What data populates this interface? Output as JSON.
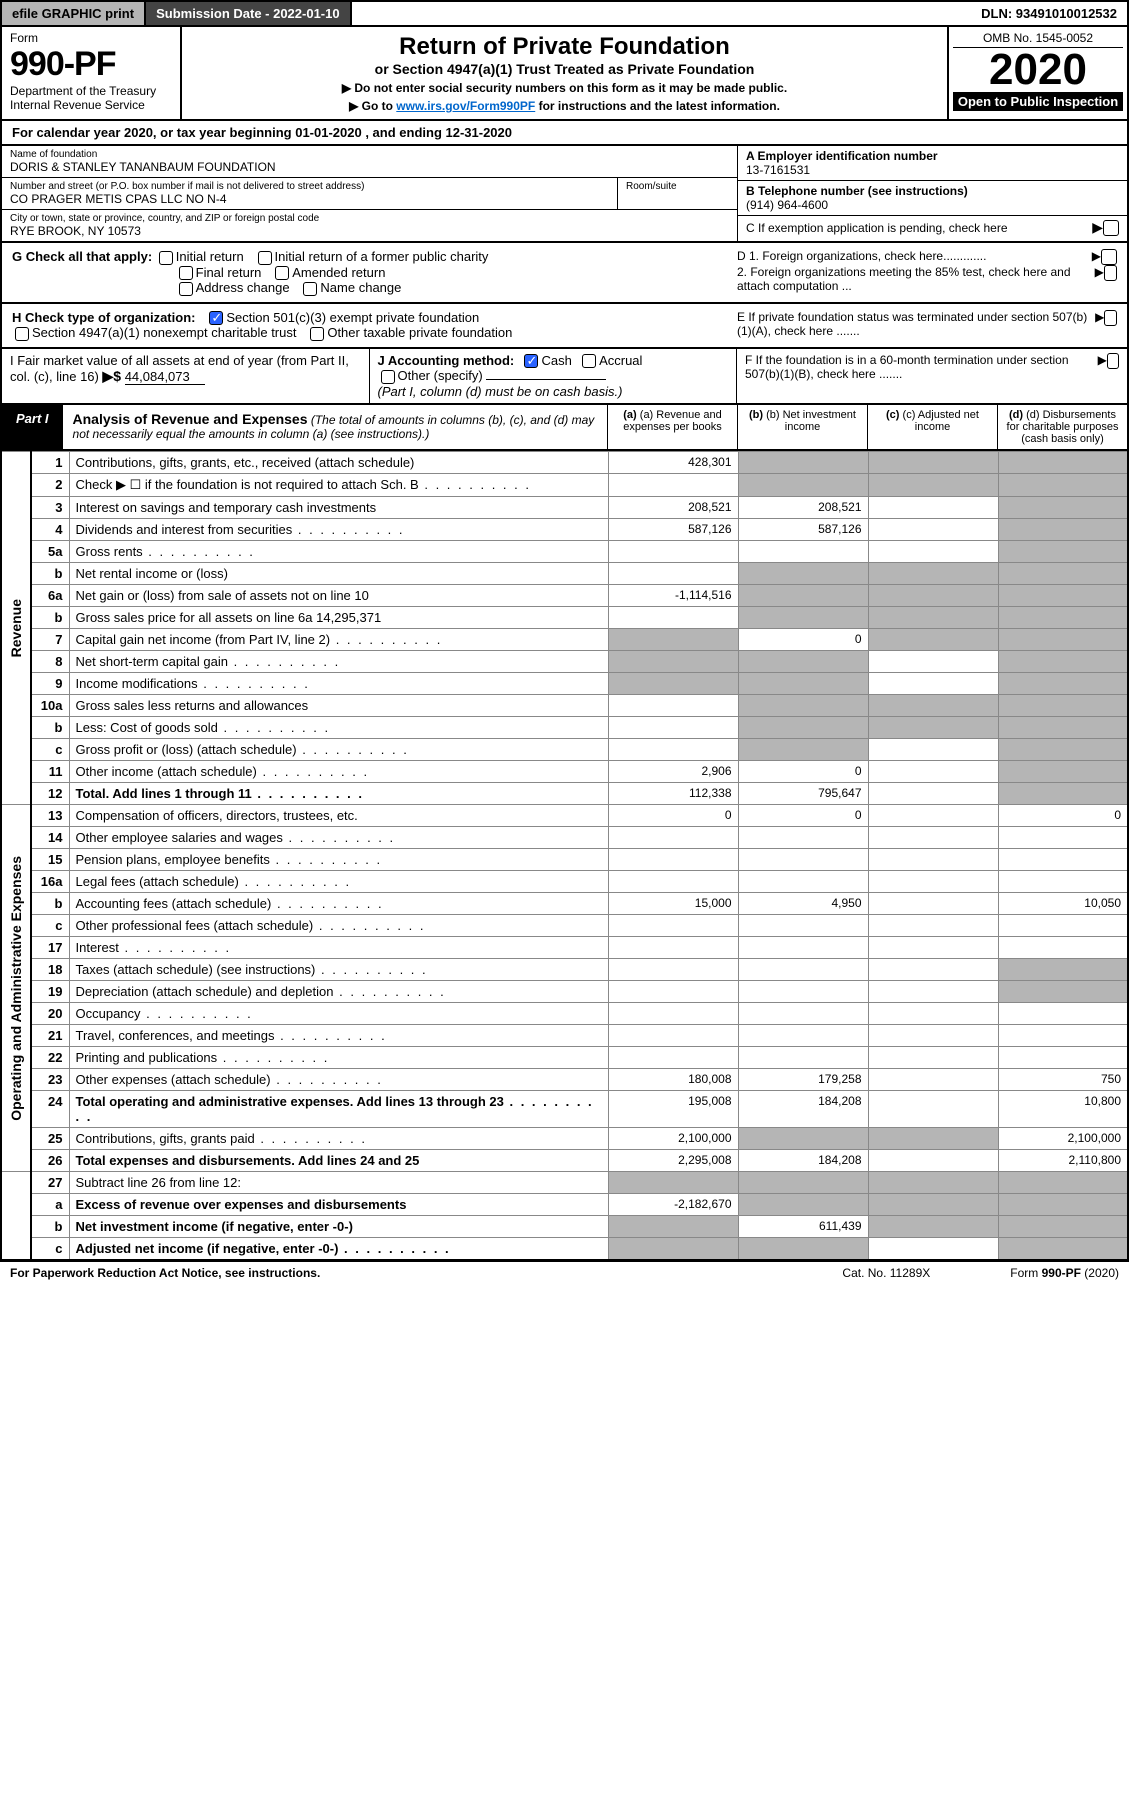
{
  "colors": {
    "grey": "#b5b5b5",
    "dark": "#444444",
    "link": "#0066cc",
    "check": "#2962ff"
  },
  "topbar": {
    "efile": "efile GRAPHIC print",
    "submission": "Submission Date - 2022-01-10",
    "dln": "DLN: 93491010012532"
  },
  "header": {
    "form_label": "Form",
    "form_no": "990-PF",
    "dept": "Department of the Treasury",
    "irs": "Internal Revenue Service",
    "title": "Return of Private Foundation",
    "subtitle": "or Section 4947(a)(1) Trust Treated as Private Foundation",
    "note1": "▶ Do not enter social security numbers on this form as it may be made public.",
    "note2_pre": "▶ Go to ",
    "note2_link": "www.irs.gov/Form990PF",
    "note2_post": " for instructions and the latest information.",
    "omb": "OMB No. 1545-0052",
    "year": "2020",
    "open": "Open to Public Inspection"
  },
  "calyear": "For calendar year 2020, or tax year beginning 01-01-2020             , and ending 12-31-2020",
  "info": {
    "name_lbl": "Name of foundation",
    "name": "DORIS & STANLEY TANANBAUM FOUNDATION",
    "addr_lbl": "Number and street (or P.O. box number if mail is not delivered to street address)",
    "addr": "CO PRAGER METIS CPAS LLC NO N-4",
    "room_lbl": "Room/suite",
    "city_lbl": "City or town, state or province, country, and ZIP or foreign postal code",
    "city": "RYE BROOK, NY  10573",
    "a_lbl": "A Employer identification number",
    "a_val": "13-7161531",
    "b_lbl": "B Telephone number (see instructions)",
    "b_val": "(914) 964-4600",
    "c_lbl": "C If exemption application is pending, check here",
    "d1": "D 1. Foreign organizations, check here.............",
    "d2": "2. Foreign organizations meeting the 85% test, check here and attach computation ...",
    "e": "E  If private foundation status was terminated under section 507(b)(1)(A), check here .......",
    "f": "F  If the foundation is in a 60-month termination under section 507(b)(1)(B), check here ......."
  },
  "G": {
    "label": "G Check all that apply:",
    "opts": [
      "Initial return",
      "Initial return of a former public charity",
      "Final return",
      "Amended return",
      "Address change",
      "Name change"
    ]
  },
  "H": {
    "label": "H Check type of organization:",
    "opt1": "Section 501(c)(3) exempt private foundation",
    "opt2": "Section 4947(a)(1) nonexempt charitable trust",
    "opt3": "Other taxable private foundation"
  },
  "I": {
    "label": "I Fair market value of all assets at end of year (from Part II, col. (c), line 16)",
    "arrow": "▶$",
    "value": "44,084,073"
  },
  "J": {
    "label": "J Accounting method:",
    "cash": "Cash",
    "accrual": "Accrual",
    "other": "Other (specify)",
    "note": "(Part I, column (d) must be on cash basis.)"
  },
  "part1": {
    "tag": "Part I",
    "title": "Analysis of Revenue and Expenses",
    "note": "(The total of amounts in columns (b), (c), and (d) may not necessarily equal the amounts in column (a) (see instructions).)",
    "col_a": "(a) Revenue and expenses per books",
    "col_b": "(b) Net investment income",
    "col_c": "(c) Adjusted net income",
    "col_d": "(d) Disbursements for charitable purposes (cash basis only)"
  },
  "sides": {
    "rev": "Revenue",
    "oae": "Operating and Administrative Expenses"
  },
  "lines": [
    {
      "n": "1",
      "d": "Contributions, gifts, grants, etc., received (attach schedule)",
      "a": "428,301",
      "bgrey": true,
      "cgrey": true,
      "dgrey": true
    },
    {
      "n": "2",
      "d": "Check ▶ ☐ if the foundation is not required to attach Sch. B",
      "dots": true,
      "bgrey": true,
      "cgrey": true,
      "dgrey": true
    },
    {
      "n": "3",
      "d": "Interest on savings and temporary cash investments",
      "a": "208,521",
      "b": "208,521",
      "dgrey": true
    },
    {
      "n": "4",
      "d": "Dividends and interest from securities",
      "dots": true,
      "a": "587,126",
      "b": "587,126",
      "dgrey": true
    },
    {
      "n": "5a",
      "d": "Gross rents",
      "dots": true,
      "dgrey": true
    },
    {
      "n": "b",
      "d": "Net rental income or (loss)",
      "bgrey": true,
      "cgrey": true,
      "dgrey": true
    },
    {
      "n": "6a",
      "d": "Net gain or (loss) from sale of assets not on line 10",
      "a": "-1,114,516",
      "bgrey": true,
      "cgrey": true,
      "dgrey": true
    },
    {
      "n": "b",
      "d": "Gross sales price for all assets on line 6a        14,295,371",
      "bgrey": true,
      "cgrey": true,
      "dgrey": true
    },
    {
      "n": "7",
      "d": "Capital gain net income (from Part IV, line 2)",
      "dots": true,
      "agrey": true,
      "b": "0",
      "cgrey": true,
      "dgrey": true
    },
    {
      "n": "8",
      "d": "Net short-term capital gain",
      "dots": true,
      "agrey": true,
      "bgrey": true,
      "dgrey": true
    },
    {
      "n": "9",
      "d": "Income modifications",
      "dots": true,
      "agrey": true,
      "bgrey": true,
      "dgrey": true
    },
    {
      "n": "10a",
      "d": "Gross sales less returns and allowances",
      "bgrey": true,
      "cgrey": true,
      "dgrey": true
    },
    {
      "n": "b",
      "d": "Less: Cost of goods sold",
      "dots": true,
      "bgrey": true,
      "cgrey": true,
      "dgrey": true
    },
    {
      "n": "c",
      "d": "Gross profit or (loss) (attach schedule)",
      "dots": true,
      "bgrey": true,
      "dgrey": true
    },
    {
      "n": "11",
      "d": "Other income (attach schedule)",
      "dots": true,
      "a": "2,906",
      "b": "0",
      "dgrey": true
    },
    {
      "n": "12",
      "d": "Total. Add lines 1 through 11",
      "dots": true,
      "bold": true,
      "a": "112,338",
      "b": "795,647",
      "dgrey": true
    }
  ],
  "lines2": [
    {
      "n": "13",
      "d": "Compensation of officers, directors, trustees, etc.",
      "a": "0",
      "b": "0",
      "dd": "0"
    },
    {
      "n": "14",
      "d": "Other employee salaries and wages",
      "dots": true
    },
    {
      "n": "15",
      "d": "Pension plans, employee benefits",
      "dots": true
    },
    {
      "n": "16a",
      "d": "Legal fees (attach schedule)",
      "dots": true
    },
    {
      "n": "b",
      "d": "Accounting fees (attach schedule)",
      "dots": true,
      "a": "15,000",
      "b": "4,950",
      "dd": "10,050"
    },
    {
      "n": "c",
      "d": "Other professional fees (attach schedule)",
      "dots": true
    },
    {
      "n": "17",
      "d": "Interest",
      "dots": true
    },
    {
      "n": "18",
      "d": "Taxes (attach schedule) (see instructions)",
      "dots": true,
      "dgrey": true
    },
    {
      "n": "19",
      "d": "Depreciation (attach schedule) and depletion",
      "dots": true,
      "dgrey": true
    },
    {
      "n": "20",
      "d": "Occupancy",
      "dots": true
    },
    {
      "n": "21",
      "d": "Travel, conferences, and meetings",
      "dots": true
    },
    {
      "n": "22",
      "d": "Printing and publications",
      "dots": true
    },
    {
      "n": "23",
      "d": "Other expenses (attach schedule)",
      "dots": true,
      "a": "180,008",
      "b": "179,258",
      "dd": "750"
    },
    {
      "n": "24",
      "d": "Total operating and administrative expenses. Add lines 13 through 23",
      "dots": true,
      "bold": true,
      "a": "195,008",
      "b": "184,208",
      "dd": "10,800"
    },
    {
      "n": "25",
      "d": "Contributions, gifts, grants paid",
      "dots": true,
      "a": "2,100,000",
      "bgrey": true,
      "cgrey": true,
      "dd": "2,100,000"
    },
    {
      "n": "26",
      "d": "Total expenses and disbursements. Add lines 24 and 25",
      "bold": true,
      "a": "2,295,008",
      "b": "184,208",
      "dd": "2,110,800"
    }
  ],
  "lines3": [
    {
      "n": "27",
      "d": "Subtract line 26 from line 12:",
      "agrey": true,
      "bgrey": true,
      "cgrey": true,
      "dgrey": true
    },
    {
      "n": "a",
      "d": "Excess of revenue over expenses and disbursements",
      "bold": true,
      "a": "-2,182,670",
      "bgrey": true,
      "cgrey": true,
      "dgrey": true
    },
    {
      "n": "b",
      "d": "Net investment income (if negative, enter -0-)",
      "bold": true,
      "agrey": true,
      "b": "611,439",
      "cgrey": true,
      "dgrey": true
    },
    {
      "n": "c",
      "d": "Adjusted net income (if negative, enter -0-)",
      "bold": true,
      "dots": true,
      "agrey": true,
      "bgrey": true,
      "dgrey": true
    }
  ],
  "footer": {
    "left": "For Paperwork Reduction Act Notice, see instructions.",
    "mid": "Cat. No. 11289X",
    "right": "Form 990-PF (2020)"
  }
}
